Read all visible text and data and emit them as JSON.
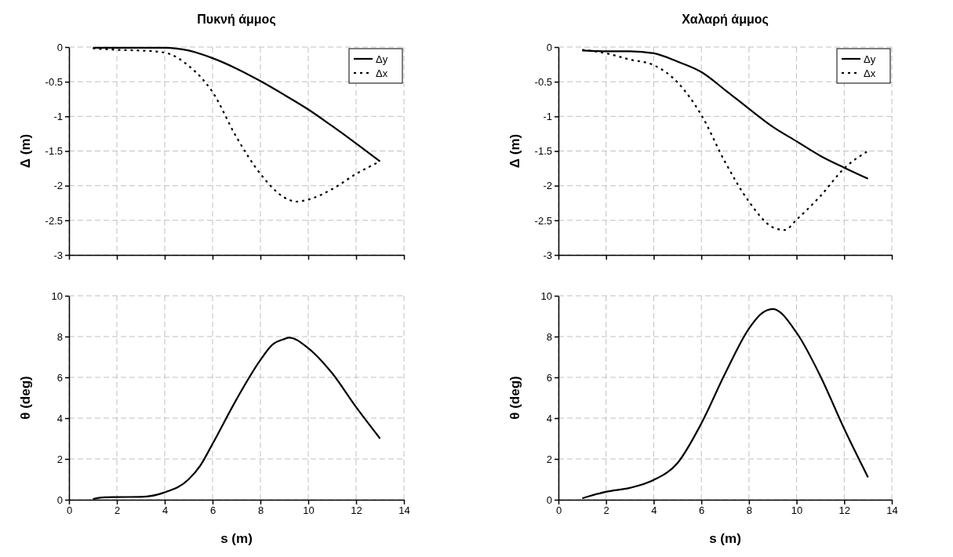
{
  "chart_data": [
    {
      "type": "line",
      "title": "Πυκνή άμμος",
      "ylabel": "Δ (m)",
      "xlim": [
        0,
        14
      ],
      "xticks": [
        0,
        2,
        4,
        6,
        8,
        10,
        12,
        14
      ],
      "ylim": [
        -3,
        0
      ],
      "yticks": [
        -3,
        -2.5,
        -2,
        -1.5,
        -1,
        -0.5,
        0
      ],
      "tick_labels": "y",
      "grid": true,
      "legend": "top right",
      "series": [
        {
          "name": "Δy",
          "color": "#000000",
          "line_style": "solid",
          "x": [
            1,
            2,
            3,
            4,
            5,
            6,
            7,
            8,
            9,
            10,
            11,
            12,
            13
          ],
          "values": [
            -0.01,
            -0.01,
            -0.01,
            -0.01,
            -0.05,
            -0.16,
            -0.31,
            -0.49,
            -0.69,
            -0.9,
            -1.14,
            -1.39,
            -1.65
          ]
        },
        {
          "name": "Δx",
          "color": "#000000",
          "line_style": "dotted",
          "x": [
            1,
            2,
            3,
            4,
            5,
            6,
            7,
            8,
            9,
            9.5,
            10,
            11,
            12,
            13
          ],
          "values": [
            -0.02,
            -0.04,
            -0.05,
            -0.08,
            -0.27,
            -0.65,
            -1.3,
            -1.83,
            -2.17,
            -2.23,
            -2.2,
            -2.05,
            -1.83,
            -1.65
          ]
        }
      ]
    },
    {
      "type": "line",
      "title": "Χαλαρή άμμος",
      "ylabel": "Δ (m)",
      "xlim": [
        0,
        14
      ],
      "xticks": [
        0,
        2,
        4,
        6,
        8,
        10,
        12,
        14
      ],
      "ylim": [
        -3,
        0
      ],
      "yticks": [
        -3,
        -2.5,
        -2,
        -1.5,
        -1,
        -0.5,
        0
      ],
      "tick_labels": "y",
      "grid": true,
      "legend": "top right",
      "series": [
        {
          "name": "Δy",
          "color": "#000000",
          "line_style": "solid",
          "x": [
            1,
            2,
            3,
            4,
            5,
            6,
            7,
            8,
            9,
            10,
            11,
            12,
            13
          ],
          "values": [
            -0.05,
            -0.06,
            -0.06,
            -0.09,
            -0.21,
            -0.36,
            -0.62,
            -0.89,
            -1.15,
            -1.36,
            -1.57,
            -1.74,
            -1.9
          ]
        },
        {
          "name": "Δx",
          "color": "#000000",
          "line_style": "dotted",
          "x": [
            1,
            2,
            3,
            4,
            5,
            6,
            7,
            8,
            9,
            9.5,
            10,
            11,
            12,
            13
          ],
          "values": [
            -0.04,
            -0.09,
            -0.18,
            -0.26,
            -0.51,
            -0.98,
            -1.66,
            -2.23,
            -2.6,
            -2.64,
            -2.49,
            -2.15,
            -1.75,
            -1.5
          ]
        }
      ]
    },
    {
      "type": "line",
      "xlabel": "s (m)",
      "ylabel": "θ (deg)",
      "xlim": [
        0,
        14
      ],
      "xticks": [
        0,
        2,
        4,
        6,
        8,
        10,
        12,
        14
      ],
      "ylim": [
        0,
        10
      ],
      "yticks": [
        0,
        2,
        4,
        6,
        8,
        10
      ],
      "grid": true,
      "series": [
        {
          "color": "#000000",
          "line_style": "solid",
          "x": [
            1,
            1.5,
            2,
            3,
            4,
            5,
            5.5,
            6,
            7,
            8,
            8.5,
            9,
            9.2,
            10,
            11,
            12,
            13
          ],
          "values": [
            0.04,
            0.12,
            0.13,
            0.14,
            0.36,
            1.0,
            1.7,
            2.74,
            4.92,
            6.85,
            7.6,
            7.88,
            7.95,
            7.43,
            6.2,
            4.54,
            3.0
          ]
        }
      ]
    },
    {
      "type": "line",
      "xlabel": "s (m)",
      "ylabel": "θ (deg)",
      "xlim": [
        0,
        14
      ],
      "xticks": [
        0,
        2,
        4,
        6,
        8,
        10,
        12,
        14
      ],
      "ylim": [
        0,
        10
      ],
      "yticks": [
        0,
        2,
        4,
        6,
        8,
        10
      ],
      "grid": true,
      "series": [
        {
          "color": "#000000",
          "line_style": "solid",
          "x": [
            1,
            2,
            3,
            4,
            5,
            6,
            7,
            8,
            8.5,
            9,
            10,
            11,
            12,
            13
          ],
          "values": [
            0.07,
            0.39,
            0.58,
            0.97,
            1.8,
            3.74,
            6.19,
            8.39,
            9.1,
            9.35,
            8.19,
            6.06,
            3.48,
            1.1
          ]
        }
      ]
    }
  ]
}
